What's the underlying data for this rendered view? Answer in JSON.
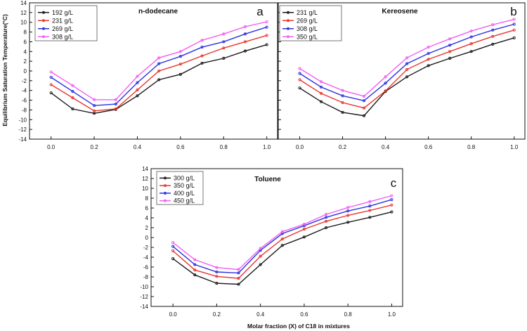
{
  "figure": {
    "ylabel": "Equilibrium Saturation Temperature(°C)",
    "xlabel": "Molar fraction (X) of C18 in mixtures"
  },
  "chart_data": [
    {
      "type": "line",
      "panel_label": "a",
      "title": "n-dodecane",
      "xlim": [
        -0.1,
        1.05
      ],
      "ylim": [
        -14,
        14
      ],
      "xticks": [
        "0.0",
        "0.2",
        "0.4",
        "0.6",
        "0.8",
        "1.0"
      ],
      "yticks": [
        "-14",
        "-12",
        "-10",
        "-8",
        "-6",
        "-4",
        "-2",
        "0",
        "2",
        "4",
        "6",
        "8",
        "10",
        "12",
        "14"
      ],
      "x": [
        0.0,
        0.1,
        0.2,
        0.3,
        0.4,
        0.5,
        0.6,
        0.7,
        0.8,
        0.9,
        1.0
      ],
      "legend_position": "top-left",
      "series": [
        {
          "name": "192 g/L",
          "color": "#1a1a1a",
          "values": [
            -4.5,
            -7.8,
            -8.7,
            -7.9,
            -5.1,
            -1.8,
            -0.7,
            1.6,
            2.6,
            4.1,
            5.4
          ]
        },
        {
          "name": "231 g/L",
          "color": "#e8352b",
          "values": [
            -2.8,
            -5.5,
            -8.2,
            -7.8,
            -3.9,
            0.0,
            1.4,
            3.1,
            4.7,
            6.0,
            7.3
          ]
        },
        {
          "name": "269 g/L",
          "color": "#2b32e0",
          "values": [
            -1.3,
            -4.2,
            -7.1,
            -6.8,
            -2.4,
            1.5,
            3.0,
            4.9,
            6.0,
            7.6,
            9.0
          ]
        },
        {
          "name": "308 g/L",
          "color": "#f25ef2",
          "values": [
            -0.2,
            -3.0,
            -5.9,
            -5.9,
            -1.1,
            2.7,
            4.0,
            6.3,
            7.6,
            9.1,
            10.1
          ]
        }
      ]
    },
    {
      "type": "line",
      "panel_label": "b",
      "title": "Kereosene",
      "xlim": [
        -0.1,
        1.05
      ],
      "ylim": [
        -14,
        14
      ],
      "xticks": [
        "0.0",
        "0.2",
        "0.4",
        "0.6",
        "0.8",
        "1.0"
      ],
      "yticks": [],
      "x": [
        0.0,
        0.1,
        0.2,
        0.3,
        0.4,
        0.5,
        0.6,
        0.7,
        0.8,
        0.9,
        1.0
      ],
      "legend_position": "top-left",
      "series": [
        {
          "name": "231 g/L",
          "color": "#1a1a1a",
          "values": [
            -3.5,
            -6.3,
            -8.5,
            -9.2,
            -4.2,
            -1.2,
            1.1,
            2.6,
            4.0,
            5.5,
            6.8
          ]
        },
        {
          "name": "269 g/L",
          "color": "#e8352b",
          "values": [
            -1.8,
            -4.6,
            -6.5,
            -7.6,
            -4.1,
            0.3,
            2.4,
            4.0,
            5.6,
            7.1,
            8.4
          ]
        },
        {
          "name": "308 g/L",
          "color": "#2b32e0",
          "values": [
            -0.5,
            -3.3,
            -5.1,
            -6.1,
            -2.5,
            1.5,
            3.6,
            5.3,
            7.0,
            8.4,
            9.6
          ]
        },
        {
          "name": "350 g/L",
          "color": "#f25ef2",
          "values": [
            0.5,
            -2.2,
            -4.0,
            -5.2,
            -1.2,
            2.7,
            4.9,
            6.6,
            8.2,
            9.5,
            10.6
          ]
        }
      ]
    },
    {
      "type": "line",
      "panel_label": "c",
      "title": "Toluene",
      "xlim": [
        -0.1,
        1.05
      ],
      "ylim": [
        -14,
        14
      ],
      "xticks": [
        "0.0",
        "0.2",
        "0.4",
        "0.6",
        "0.8",
        "1.0"
      ],
      "yticks": [
        "-14",
        "-12",
        "-10",
        "-8",
        "-6",
        "-4",
        "-2",
        "0",
        "2",
        "4",
        "6",
        "8",
        "10",
        "12",
        "14"
      ],
      "x": [
        0.0,
        0.1,
        0.2,
        0.3,
        0.4,
        0.5,
        0.6,
        0.7,
        0.8,
        0.9,
        1.0
      ],
      "legend_position": "top-left",
      "series": [
        {
          "name": "300 g/L",
          "color": "#1a1a1a",
          "values": [
            -4.3,
            -7.6,
            -9.3,
            -9.5,
            -5.5,
            -1.6,
            0.1,
            2.0,
            3.1,
            4.1,
            5.2
          ]
        },
        {
          "name": "350 g/L",
          "color": "#e8352b",
          "values": [
            -2.7,
            -6.6,
            -7.9,
            -8.3,
            -3.8,
            -0.3,
            1.7,
            3.3,
            4.5,
            5.5,
            6.6
          ]
        },
        {
          "name": "400 g/L",
          "color": "#2b32e0",
          "values": [
            -1.8,
            -5.5,
            -7.0,
            -7.2,
            -2.6,
            0.8,
            2.4,
            4.1,
            5.4,
            6.4,
            7.7
          ]
        },
        {
          "name": "450 g/L",
          "color": "#f25ef2",
          "values": [
            -1.0,
            -4.5,
            -6.1,
            -6.5,
            -2.2,
            1.2,
            2.7,
            4.7,
            6.1,
            7.3,
            8.5
          ]
        }
      ]
    }
  ]
}
